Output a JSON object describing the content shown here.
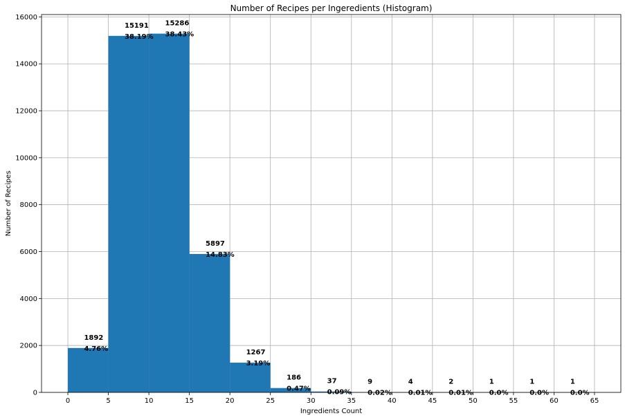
{
  "chart_data": {
    "type": "bar",
    "title": "Number of Recipes per Ingeredients (Histogram)",
    "xlabel": "Ingredients Count",
    "ylabel": "Number of Recipes",
    "xlim": [
      -3.25,
      68.25
    ],
    "ylim": [
      0,
      16100
    ],
    "grid": true,
    "bins": [
      {
        "x0": 0,
        "x1": 5,
        "value": 1892,
        "count_label": "1892",
        "pct_label": "4.76%"
      },
      {
        "x0": 5,
        "x1": 10,
        "value": 15191,
        "count_label": "15191",
        "pct_label": "38.19%"
      },
      {
        "x0": 10,
        "x1": 15,
        "value": 15286,
        "count_label": "15286",
        "pct_label": "38.43%"
      },
      {
        "x0": 15,
        "x1": 20,
        "value": 5897,
        "count_label": "5897",
        "pct_label": "14.83%"
      },
      {
        "x0": 20,
        "x1": 25,
        "value": 1267,
        "count_label": "1267",
        "pct_label": "3.19%"
      },
      {
        "x0": 25,
        "x1": 30,
        "value": 186,
        "count_label": "186",
        "pct_label": "0.47%"
      },
      {
        "x0": 30,
        "x1": 35,
        "value": 37,
        "count_label": "37",
        "pct_label": "0.09%"
      },
      {
        "x0": 35,
        "x1": 40,
        "value": 9,
        "count_label": "9",
        "pct_label": "0.02%"
      },
      {
        "x0": 40,
        "x1": 45,
        "value": 4,
        "count_label": "4",
        "pct_label": "0.01%"
      },
      {
        "x0": 45,
        "x1": 50,
        "value": 2,
        "count_label": "2",
        "pct_label": "0.01%"
      },
      {
        "x0": 50,
        "x1": 55,
        "value": 1,
        "count_label": "1",
        "pct_label": "0.0%"
      },
      {
        "x0": 55,
        "x1": 60,
        "value": 1,
        "count_label": "1",
        "pct_label": "0.0%"
      },
      {
        "x0": 60,
        "x1": 65,
        "value": 1,
        "count_label": "1",
        "pct_label": "0.0%"
      }
    ],
    "xticks": [
      0,
      5,
      10,
      15,
      20,
      25,
      30,
      35,
      40,
      45,
      50,
      55,
      60,
      65
    ],
    "yticks": [
      0,
      2000,
      4000,
      6000,
      8000,
      10000,
      12000,
      14000,
      16000
    ],
    "bar_color": "#1f77b4"
  }
}
